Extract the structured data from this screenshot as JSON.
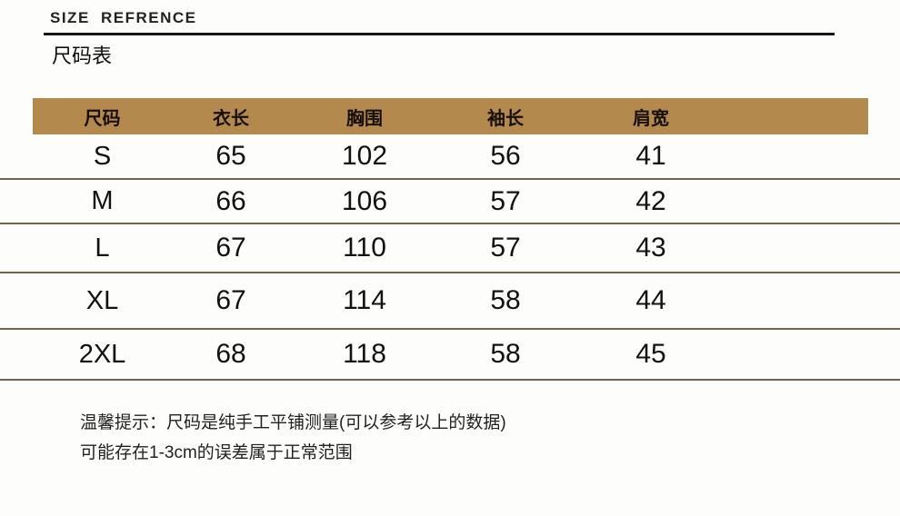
{
  "header": {
    "title_en": "SIZE  REFRENCE",
    "title_cn": "尺码表"
  },
  "table": {
    "headers": [
      "尺码",
      "衣长",
      "胸围",
      "袖长",
      "肩宽"
    ],
    "rows": [
      [
        "S",
        "65",
        "102",
        "56",
        "41"
      ],
      [
        "M",
        "66",
        "106",
        "57",
        "42"
      ],
      [
        "L",
        "67",
        "110",
        "57",
        "43"
      ],
      [
        "XL",
        "67",
        "114",
        "58",
        "44"
      ],
      [
        "2XL",
        "68",
        "118",
        "58",
        "45"
      ]
    ]
  },
  "notes": {
    "line1": "温馨提示：尺码是纯手工平铺测量(可以参考以上的数据)",
    "line2": "可能存在1-3cm的误差属于正常范围"
  },
  "colors": {
    "header_bg": "#b4894d",
    "divider": "#6d6449",
    "title_rule": "#15161a"
  }
}
